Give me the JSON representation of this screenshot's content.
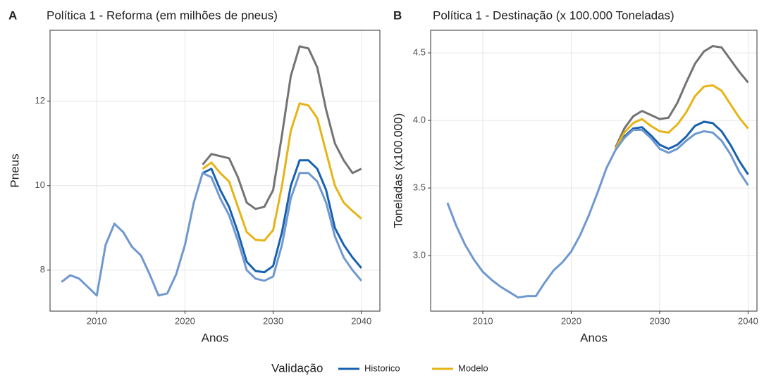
{
  "legend_title": "Validação",
  "chart_data": [
    {
      "type": "line",
      "panel_label": "A",
      "title": "Política 1 - Reforma (em milhões de pneus)",
      "x_label": "Anos",
      "y_label": "Pneus",
      "x": [
        2006,
        2007,
        2008,
        2009,
        2010,
        2011,
        2012,
        2013,
        2014,
        2015,
        2016,
        2017,
        2018,
        2019,
        2020,
        2021,
        2022,
        2023,
        2024,
        2025,
        2026,
        2027,
        2028,
        2029,
        2030,
        2031,
        2032,
        2033,
        2034,
        2035,
        2036,
        2037,
        2038,
        2039,
        2040
      ],
      "xlim": [
        2004.7,
        2042.1
      ],
      "xticks": [
        2010,
        2020,
        2030,
        2040
      ],
      "ylim": [
        7.03,
        13.68
      ],
      "yticks": [
        8,
        10,
        12
      ],
      "grid": true,
      "series": [
        {
          "color": "#737373",
          "values": [
            null,
            null,
            null,
            null,
            null,
            null,
            null,
            null,
            null,
            null,
            null,
            null,
            null,
            null,
            null,
            null,
            10.5,
            10.75,
            10.7,
            10.65,
            10.2,
            9.6,
            9.45,
            9.5,
            9.9,
            11.2,
            12.6,
            13.3,
            13.25,
            12.8,
            11.8,
            11.0,
            10.6,
            10.3,
            10.4
          ]
        },
        {
          "name": "Historico",
          "color": "#1761b0",
          "values": [
            null,
            null,
            null,
            null,
            null,
            null,
            null,
            null,
            null,
            null,
            null,
            null,
            null,
            null,
            null,
            null,
            10.3,
            10.4,
            9.9,
            9.5,
            8.9,
            8.2,
            7.98,
            7.95,
            8.1,
            8.9,
            10.0,
            10.6,
            10.6,
            10.4,
            9.9,
            9.0,
            8.6,
            8.3,
            8.05
          ]
        },
        {
          "name": "Modelo",
          "color": "#e6b417",
          "values": [
            null,
            null,
            null,
            null,
            null,
            null,
            null,
            null,
            null,
            null,
            null,
            null,
            null,
            null,
            null,
            null,
            10.4,
            10.55,
            10.3,
            10.1,
            9.5,
            8.9,
            8.72,
            8.7,
            8.95,
            10.0,
            11.3,
            11.95,
            11.9,
            11.6,
            10.8,
            10.0,
            9.6,
            9.4,
            9.22
          ]
        },
        {
          "color": "#6f98cf",
          "values": [
            7.72,
            7.88,
            7.8,
            7.6,
            7.4,
            8.6,
            9.1,
            8.9,
            8.55,
            8.35,
            7.9,
            7.4,
            7.45,
            7.9,
            8.6,
            9.6,
            10.3,
            10.2,
            9.7,
            9.3,
            8.7,
            8.0,
            7.8,
            7.75,
            7.85,
            8.6,
            9.7,
            10.3,
            10.3,
            10.1,
            9.6,
            8.8,
            8.3,
            8.0,
            7.75
          ]
        }
      ]
    },
    {
      "type": "line",
      "panel_label": "B",
      "title": "Política 1 - Destinação (x 100.000 Toneladas)",
      "x_label": "Anos",
      "y_label": "Toneladas (x100.000)",
      "x": [
        2006,
        2007,
        2008,
        2009,
        2010,
        2011,
        2012,
        2013,
        2014,
        2015,
        2016,
        2017,
        2018,
        2019,
        2020,
        2021,
        2022,
        2023,
        2024,
        2025,
        2026,
        2027,
        2028,
        2029,
        2030,
        2031,
        2032,
        2033,
        2034,
        2035,
        2036,
        2037,
        2038,
        2039,
        2040
      ],
      "xlim": [
        2004.1,
        2041.0
      ],
      "xticks": [
        2010,
        2020,
        2030,
        2040
      ],
      "ylim": [
        2.589,
        4.667
      ],
      "yticks": [
        {
          "value": 3,
          "label": "3.0"
        },
        3.5,
        {
          "value": 4,
          "label": "4.0"
        },
        4.5
      ],
      "grid": true,
      "series": [
        {
          "color": "#737373",
          "values": [
            null,
            null,
            null,
            null,
            null,
            null,
            null,
            null,
            null,
            null,
            null,
            null,
            null,
            null,
            null,
            null,
            null,
            null,
            null,
            3.8,
            3.94,
            4.03,
            4.07,
            4.04,
            4.01,
            4.02,
            4.13,
            4.28,
            4.42,
            4.51,
            4.55,
            4.54,
            4.45,
            4.36,
            4.28
          ]
        },
        {
          "color": "#1761b0",
          "values": [
            null,
            null,
            null,
            null,
            null,
            null,
            null,
            null,
            null,
            null,
            null,
            null,
            null,
            null,
            null,
            null,
            null,
            null,
            null,
            3.78,
            3.88,
            3.94,
            3.95,
            3.89,
            3.82,
            3.79,
            3.82,
            3.88,
            3.96,
            3.99,
            3.98,
            3.92,
            3.82,
            3.7,
            3.6
          ]
        },
        {
          "color": "#e6b417",
          "values": [
            null,
            null,
            null,
            null,
            null,
            null,
            null,
            null,
            null,
            null,
            null,
            null,
            null,
            null,
            null,
            null,
            null,
            null,
            null,
            3.79,
            3.91,
            3.98,
            4.01,
            3.96,
            3.92,
            3.91,
            3.97,
            4.06,
            4.18,
            4.25,
            4.26,
            4.22,
            4.12,
            4.02,
            3.94
          ]
        },
        {
          "color": "#6f98cf",
          "values": [
            3.39,
            3.22,
            3.08,
            2.97,
            2.88,
            2.82,
            2.77,
            2.73,
            2.69,
            2.7,
            2.7,
            2.8,
            2.89,
            2.95,
            3.03,
            3.15,
            3.3,
            3.47,
            3.65,
            3.78,
            3.87,
            3.93,
            3.93,
            3.87,
            3.79,
            3.76,
            3.79,
            3.85,
            3.9,
            3.92,
            3.91,
            3.85,
            3.75,
            3.62,
            3.52
          ]
        }
      ]
    }
  ]
}
